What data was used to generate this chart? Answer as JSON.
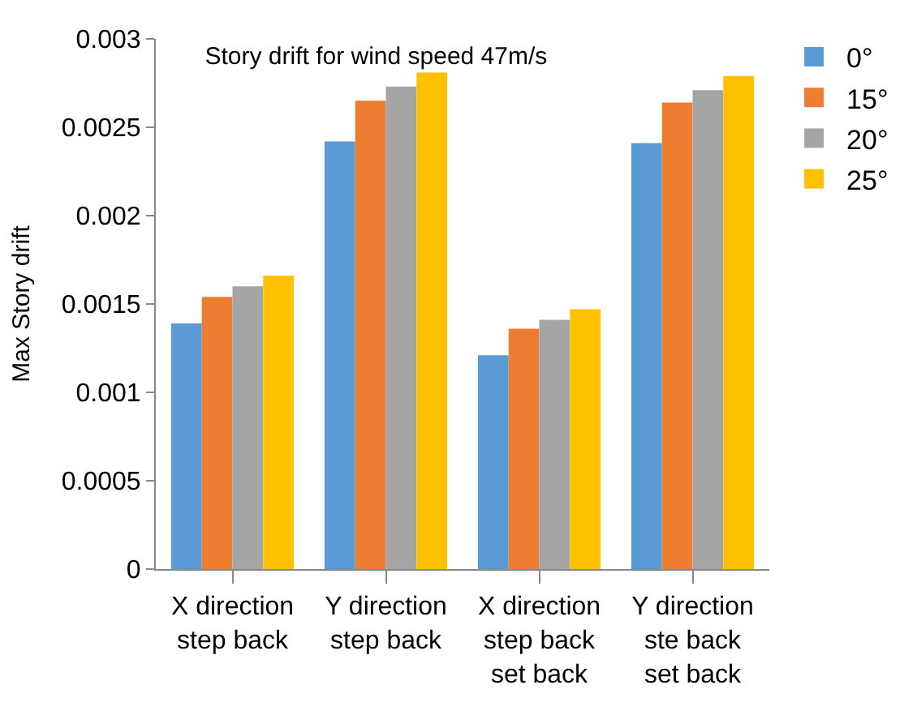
{
  "chart_data": {
    "type": "bar",
    "title": "Story drift for wind speed 47m/s",
    "ylabel": "Max Story drift",
    "categories": [
      "X direction step back",
      "Y direction step back",
      "X direction step back set back",
      "Y direction ste back set back"
    ],
    "series": [
      {
        "name": "0°",
        "color": "#5b9bd5",
        "values": [
          0.00139,
          0.00242,
          0.00121,
          0.00241
        ]
      },
      {
        "name": "15°",
        "color": "#ed7d31",
        "values": [
          0.00154,
          0.00265,
          0.00136,
          0.00264
        ]
      },
      {
        "name": "20°",
        "color": "#a5a5a5",
        "values": [
          0.0016,
          0.00273,
          0.00141,
          0.00271
        ]
      },
      {
        "name": "25°",
        "color": "#ffc000",
        "values": [
          0.00166,
          0.00281,
          0.00147,
          0.00279
        ]
      }
    ],
    "ylim": [
      0,
      0.003
    ],
    "yticks": [
      0,
      0.0005,
      0.001,
      0.0015,
      0.002,
      0.0025,
      0.003
    ],
    "legend": "top right"
  }
}
